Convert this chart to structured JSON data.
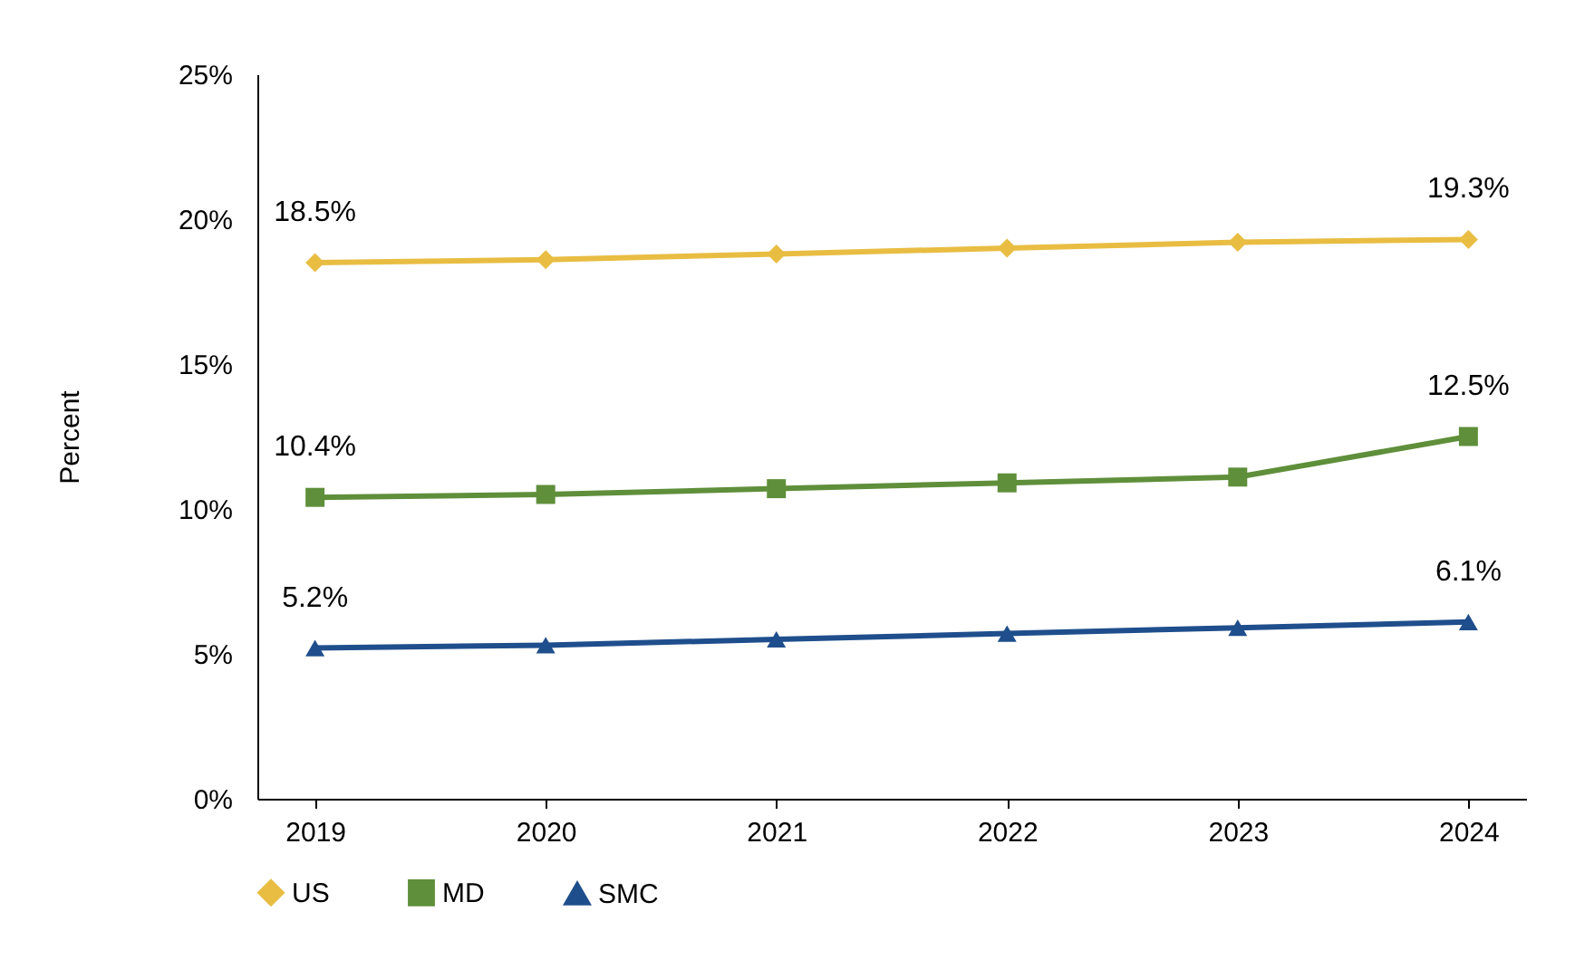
{
  "chart_data": {
    "type": "line",
    "ylabel": "Percent",
    "categories": [
      "2019",
      "2020",
      "2021",
      "2022",
      "2023",
      "2024"
    ],
    "series": [
      {
        "name": "US",
        "color": "#e8bd42",
        "marker": "diamond",
        "values": [
          18.5,
          18.6,
          18.8,
          19.0,
          19.2,
          19.3
        ],
        "value_labels": [
          "18.5%",
          null,
          null,
          null,
          null,
          "19.3%"
        ]
      },
      {
        "name": "MD",
        "color": "#5f8f3a",
        "marker": "square",
        "values": [
          10.4,
          10.5,
          10.7,
          10.9,
          11.1,
          12.5
        ],
        "value_labels": [
          "10.4%",
          null,
          null,
          null,
          null,
          "12.5%"
        ]
      },
      {
        "name": "SMC",
        "color": "#1f4e8c",
        "marker": "triangle",
        "values": [
          5.2,
          5.3,
          5.5,
          5.7,
          5.9,
          6.1
        ],
        "value_labels": [
          "5.2%",
          null,
          null,
          null,
          null,
          "6.1%"
        ]
      }
    ],
    "ylim": [
      0,
      25
    ],
    "yticks": [
      {
        "value": 0,
        "label": "0%"
      },
      {
        "value": 5,
        "label": "5%"
      },
      {
        "value": 10,
        "label": "10%"
      },
      {
        "value": 15,
        "label": "15%"
      },
      {
        "value": 20,
        "label": "20%"
      },
      {
        "value": 25,
        "label": "25%"
      }
    ],
    "grid": false,
    "legend": "bottom"
  }
}
